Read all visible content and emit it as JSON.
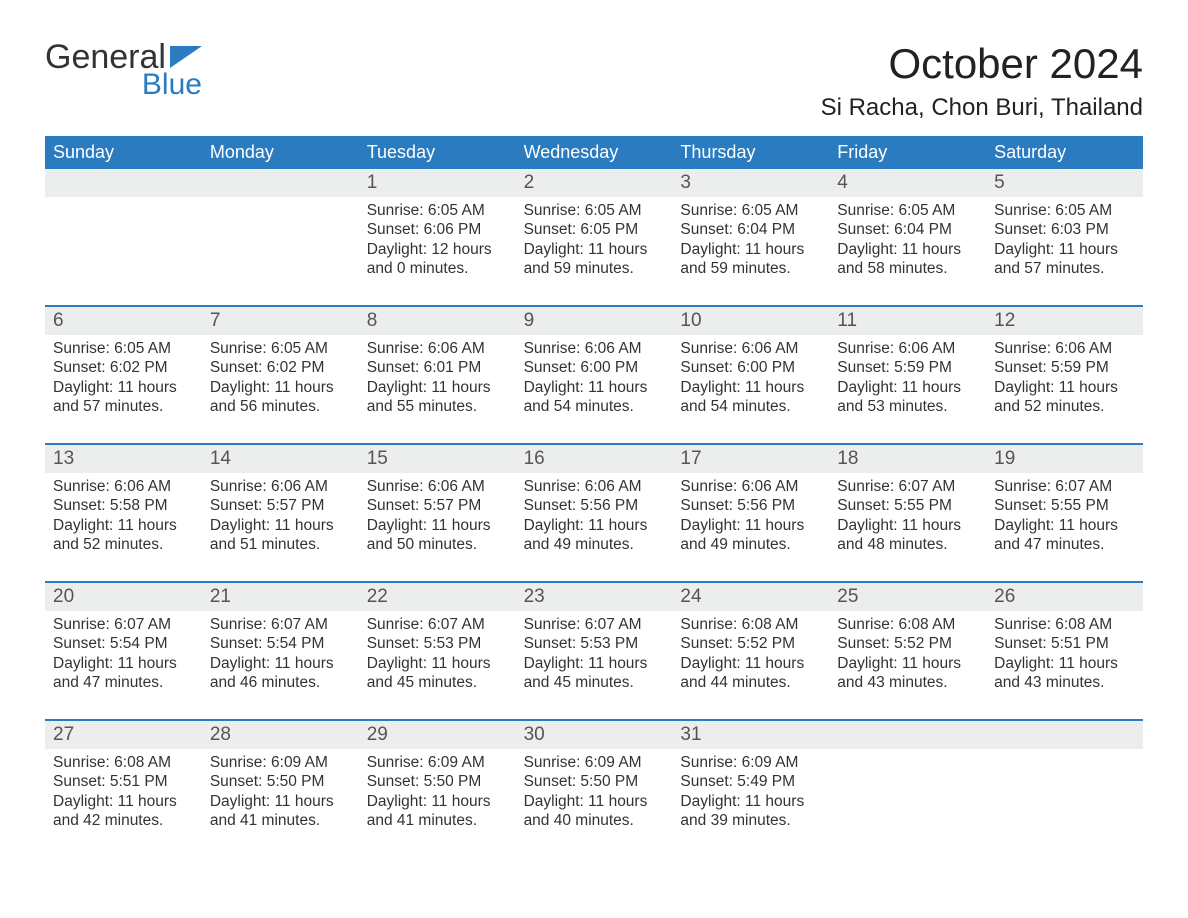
{
  "logo": {
    "general": "General",
    "blue": "Blue",
    "flag_color": "#2a7bbf"
  },
  "title": "October 2024",
  "location": "Si Racha, Chon Buri, Thailand",
  "colors": {
    "header_bg": "#2a7bbf",
    "header_text": "#ffffff",
    "daynum_bg": "#eceded",
    "daynum_text": "#555555",
    "body_text": "#333333",
    "row_divider": "#2a7bbf",
    "background": "#ffffff"
  },
  "fonts": {
    "title_size_pt": 32,
    "location_size_pt": 18,
    "weekday_size_pt": 14,
    "daynum_size_pt": 14,
    "cell_size_pt": 12
  },
  "weekdays": [
    "Sunday",
    "Monday",
    "Tuesday",
    "Wednesday",
    "Thursday",
    "Friday",
    "Saturday"
  ],
  "weeks": [
    {
      "nums": [
        "",
        "",
        "1",
        "2",
        "3",
        "4",
        "5"
      ],
      "cells": [
        {
          "sunrise": "",
          "sunset": "",
          "daylight": ""
        },
        {
          "sunrise": "",
          "sunset": "",
          "daylight": ""
        },
        {
          "sunrise": "Sunrise: 6:05 AM",
          "sunset": "Sunset: 6:06 PM",
          "daylight": "Daylight: 12 hours and 0 minutes."
        },
        {
          "sunrise": "Sunrise: 6:05 AM",
          "sunset": "Sunset: 6:05 PM",
          "daylight": "Daylight: 11 hours and 59 minutes."
        },
        {
          "sunrise": "Sunrise: 6:05 AM",
          "sunset": "Sunset: 6:04 PM",
          "daylight": "Daylight: 11 hours and 59 minutes."
        },
        {
          "sunrise": "Sunrise: 6:05 AM",
          "sunset": "Sunset: 6:04 PM",
          "daylight": "Daylight: 11 hours and 58 minutes."
        },
        {
          "sunrise": "Sunrise: 6:05 AM",
          "sunset": "Sunset: 6:03 PM",
          "daylight": "Daylight: 11 hours and 57 minutes."
        }
      ]
    },
    {
      "nums": [
        "6",
        "7",
        "8",
        "9",
        "10",
        "11",
        "12"
      ],
      "cells": [
        {
          "sunrise": "Sunrise: 6:05 AM",
          "sunset": "Sunset: 6:02 PM",
          "daylight": "Daylight: 11 hours and 57 minutes."
        },
        {
          "sunrise": "Sunrise: 6:05 AM",
          "sunset": "Sunset: 6:02 PM",
          "daylight": "Daylight: 11 hours and 56 minutes."
        },
        {
          "sunrise": "Sunrise: 6:06 AM",
          "sunset": "Sunset: 6:01 PM",
          "daylight": "Daylight: 11 hours and 55 minutes."
        },
        {
          "sunrise": "Sunrise: 6:06 AM",
          "sunset": "Sunset: 6:00 PM",
          "daylight": "Daylight: 11 hours and 54 minutes."
        },
        {
          "sunrise": "Sunrise: 6:06 AM",
          "sunset": "Sunset: 6:00 PM",
          "daylight": "Daylight: 11 hours and 54 minutes."
        },
        {
          "sunrise": "Sunrise: 6:06 AM",
          "sunset": "Sunset: 5:59 PM",
          "daylight": "Daylight: 11 hours and 53 minutes."
        },
        {
          "sunrise": "Sunrise: 6:06 AM",
          "sunset": "Sunset: 5:59 PM",
          "daylight": "Daylight: 11 hours and 52 minutes."
        }
      ]
    },
    {
      "nums": [
        "13",
        "14",
        "15",
        "16",
        "17",
        "18",
        "19"
      ],
      "cells": [
        {
          "sunrise": "Sunrise: 6:06 AM",
          "sunset": "Sunset: 5:58 PM",
          "daylight": "Daylight: 11 hours and 52 minutes."
        },
        {
          "sunrise": "Sunrise: 6:06 AM",
          "sunset": "Sunset: 5:57 PM",
          "daylight": "Daylight: 11 hours and 51 minutes."
        },
        {
          "sunrise": "Sunrise: 6:06 AM",
          "sunset": "Sunset: 5:57 PM",
          "daylight": "Daylight: 11 hours and 50 minutes."
        },
        {
          "sunrise": "Sunrise: 6:06 AM",
          "sunset": "Sunset: 5:56 PM",
          "daylight": "Daylight: 11 hours and 49 minutes."
        },
        {
          "sunrise": "Sunrise: 6:06 AM",
          "sunset": "Sunset: 5:56 PM",
          "daylight": "Daylight: 11 hours and 49 minutes."
        },
        {
          "sunrise": "Sunrise: 6:07 AM",
          "sunset": "Sunset: 5:55 PM",
          "daylight": "Daylight: 11 hours and 48 minutes."
        },
        {
          "sunrise": "Sunrise: 6:07 AM",
          "sunset": "Sunset: 5:55 PM",
          "daylight": "Daylight: 11 hours and 47 minutes."
        }
      ]
    },
    {
      "nums": [
        "20",
        "21",
        "22",
        "23",
        "24",
        "25",
        "26"
      ],
      "cells": [
        {
          "sunrise": "Sunrise: 6:07 AM",
          "sunset": "Sunset: 5:54 PM",
          "daylight": "Daylight: 11 hours and 47 minutes."
        },
        {
          "sunrise": "Sunrise: 6:07 AM",
          "sunset": "Sunset: 5:54 PM",
          "daylight": "Daylight: 11 hours and 46 minutes."
        },
        {
          "sunrise": "Sunrise: 6:07 AM",
          "sunset": "Sunset: 5:53 PM",
          "daylight": "Daylight: 11 hours and 45 minutes."
        },
        {
          "sunrise": "Sunrise: 6:07 AM",
          "sunset": "Sunset: 5:53 PM",
          "daylight": "Daylight: 11 hours and 45 minutes."
        },
        {
          "sunrise": "Sunrise: 6:08 AM",
          "sunset": "Sunset: 5:52 PM",
          "daylight": "Daylight: 11 hours and 44 minutes."
        },
        {
          "sunrise": "Sunrise: 6:08 AM",
          "sunset": "Sunset: 5:52 PM",
          "daylight": "Daylight: 11 hours and 43 minutes."
        },
        {
          "sunrise": "Sunrise: 6:08 AM",
          "sunset": "Sunset: 5:51 PM",
          "daylight": "Daylight: 11 hours and 43 minutes."
        }
      ]
    },
    {
      "nums": [
        "27",
        "28",
        "29",
        "30",
        "31",
        "",
        ""
      ],
      "cells": [
        {
          "sunrise": "Sunrise: 6:08 AM",
          "sunset": "Sunset: 5:51 PM",
          "daylight": "Daylight: 11 hours and 42 minutes."
        },
        {
          "sunrise": "Sunrise: 6:09 AM",
          "sunset": "Sunset: 5:50 PM",
          "daylight": "Daylight: 11 hours and 41 minutes."
        },
        {
          "sunrise": "Sunrise: 6:09 AM",
          "sunset": "Sunset: 5:50 PM",
          "daylight": "Daylight: 11 hours and 41 minutes."
        },
        {
          "sunrise": "Sunrise: 6:09 AM",
          "sunset": "Sunset: 5:50 PM",
          "daylight": "Daylight: 11 hours and 40 minutes."
        },
        {
          "sunrise": "Sunrise: 6:09 AM",
          "sunset": "Sunset: 5:49 PM",
          "daylight": "Daylight: 11 hours and 39 minutes."
        },
        {
          "sunrise": "",
          "sunset": "",
          "daylight": ""
        },
        {
          "sunrise": "",
          "sunset": "",
          "daylight": ""
        }
      ]
    }
  ]
}
